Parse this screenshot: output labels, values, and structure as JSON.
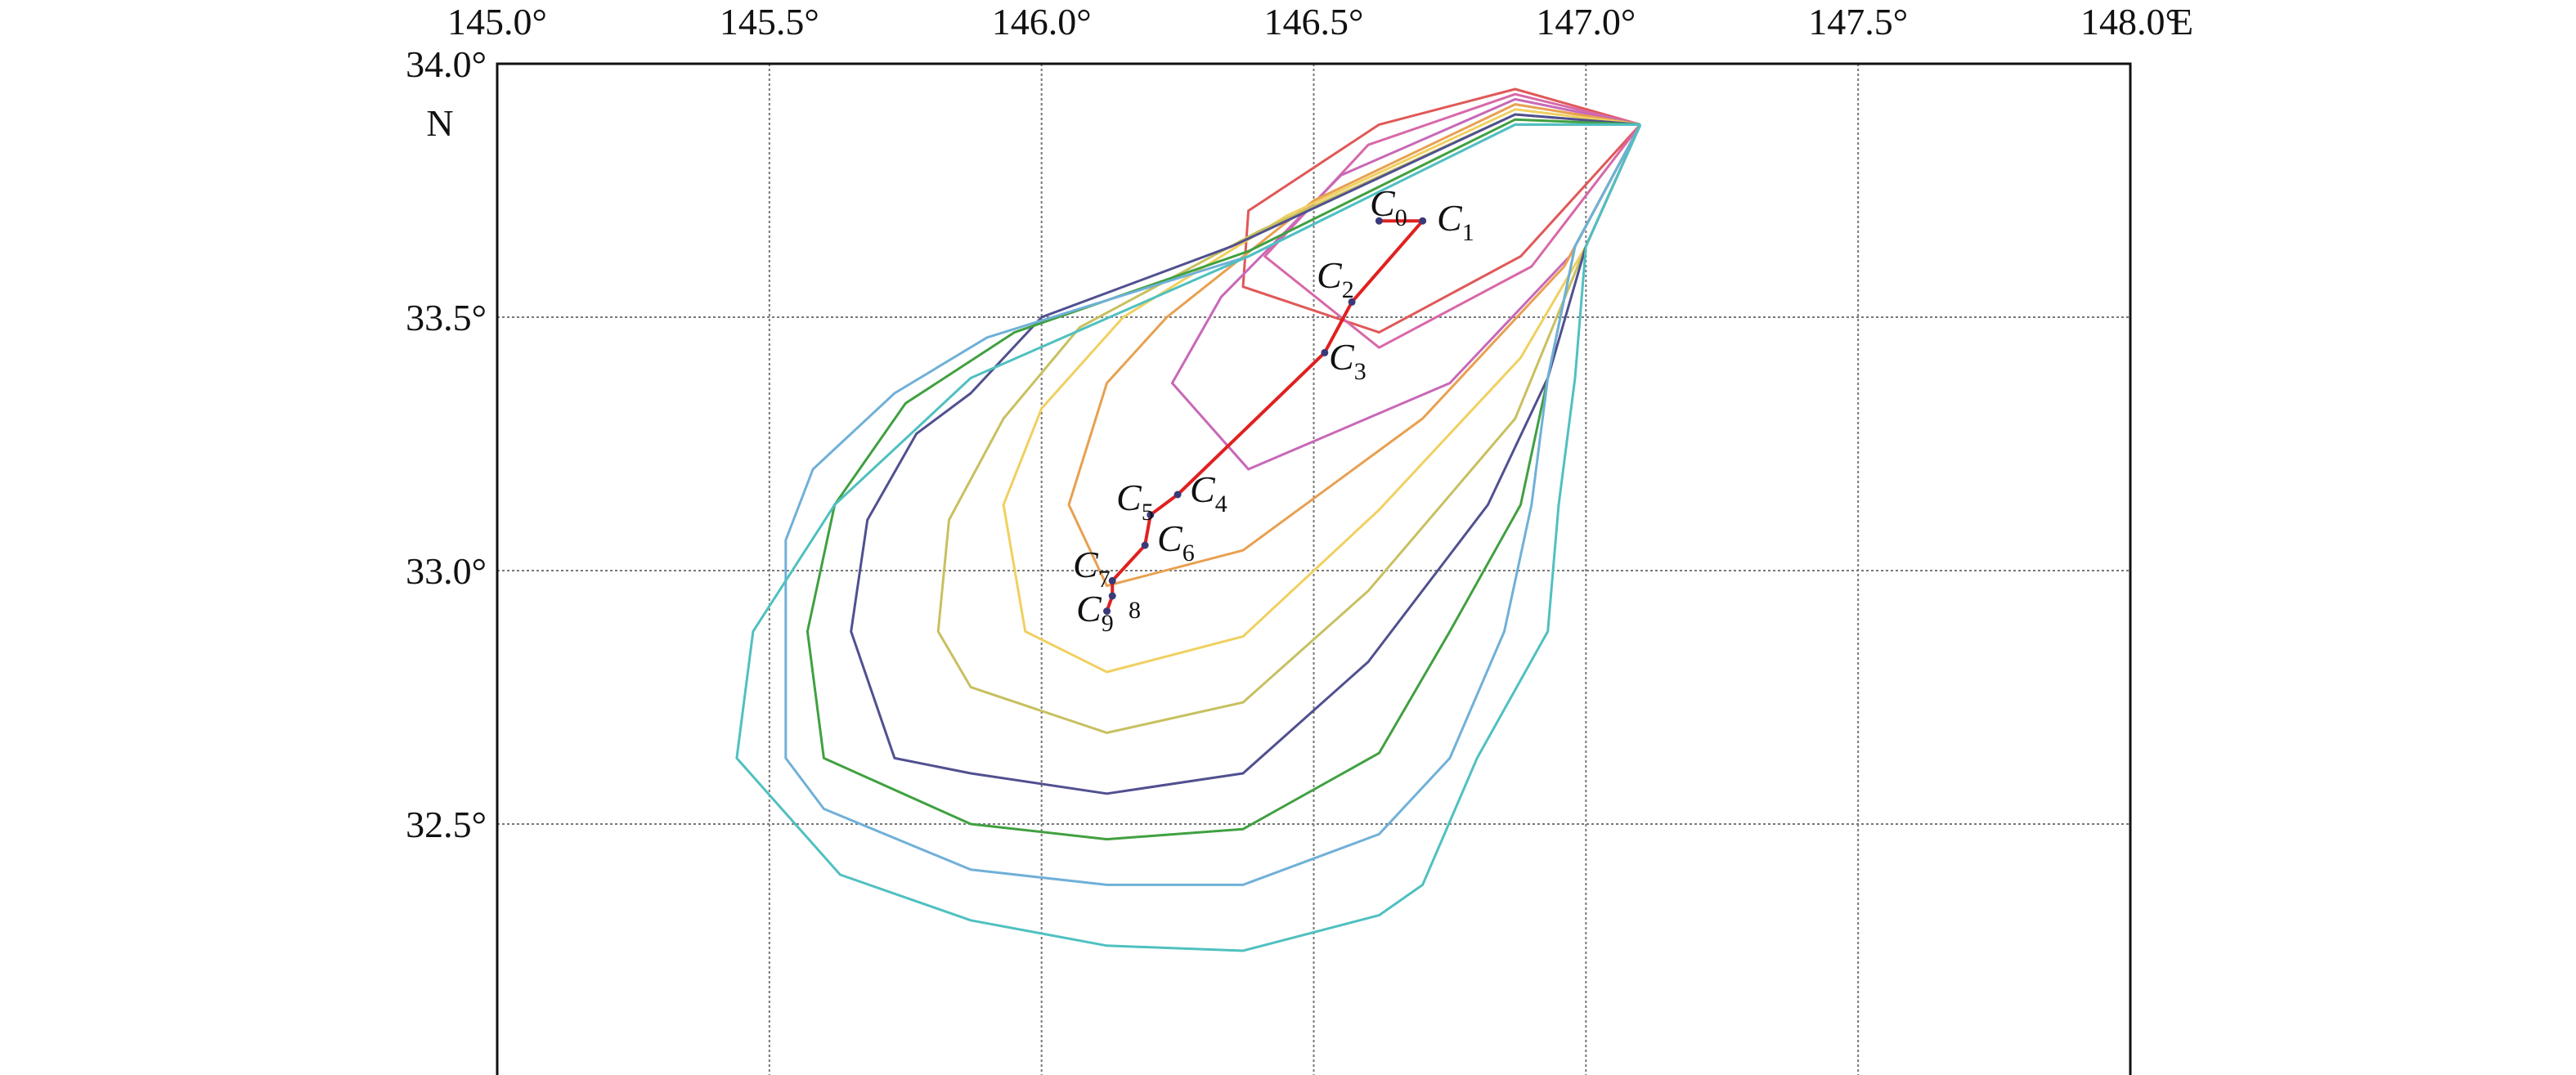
{
  "chart_data": {
    "type": "map",
    "x_axis": {
      "range": [
        145.0,
        148.0
      ],
      "ticks": [
        {
          "value": 145.0,
          "label": "145.0°"
        },
        {
          "value": 145.5,
          "label": "145.5°"
        },
        {
          "value": 146.0,
          "label": "146.0°"
        },
        {
          "value": 146.5,
          "label": "146.5°"
        },
        {
          "value": 147.0,
          "label": "147.0°"
        },
        {
          "value": 147.5,
          "label": "147.5°"
        },
        {
          "value": 148.0,
          "label": "148.0°"
        }
      ],
      "unit": "E"
    },
    "y_axis": {
      "range": [
        32.0,
        34.0
      ],
      "ticks": [
        {
          "value": 34.0,
          "label": "34.0°"
        },
        {
          "value": 33.5,
          "label": "33.5°"
        },
        {
          "value": 33.0,
          "label": "33.0°"
        },
        {
          "value": 32.5,
          "label": "32.5°"
        }
      ],
      "unit": "N"
    },
    "grid": true,
    "contours": [
      {
        "color": "#e05858",
        "points": [
          [
            147.1,
            33.88
          ],
          [
            146.87,
            33.95
          ],
          [
            146.62,
            33.88
          ],
          [
            146.38,
            33.71
          ],
          [
            146.37,
            33.56
          ],
          [
            146.62,
            33.47
          ],
          [
            146.88,
            33.62
          ],
          [
            147.1,
            33.88
          ]
        ]
      },
      {
        "color": "#d868a8",
        "points": [
          [
            147.1,
            33.88
          ],
          [
            146.87,
            33.94
          ],
          [
            146.6,
            33.84
          ],
          [
            146.41,
            33.62
          ],
          [
            146.62,
            33.44
          ],
          [
            146.9,
            33.6
          ],
          [
            147.1,
            33.88
          ]
        ]
      },
      {
        "color": "#c868b8",
        "points": [
          [
            147.1,
            33.88
          ],
          [
            146.87,
            33.93
          ],
          [
            146.55,
            33.78
          ],
          [
            146.33,
            33.54
          ],
          [
            146.24,
            33.37
          ],
          [
            146.38,
            33.2
          ],
          [
            146.75,
            33.37
          ],
          [
            146.97,
            33.62
          ],
          [
            147.1,
            33.88
          ]
        ]
      },
      {
        "color": "#e8a050",
        "points": [
          [
            147.1,
            33.88
          ],
          [
            146.87,
            33.92
          ],
          [
            146.5,
            33.73
          ],
          [
            146.23,
            33.5
          ],
          [
            146.12,
            33.37
          ],
          [
            146.05,
            33.13
          ],
          [
            146.12,
            32.97
          ],
          [
            146.37,
            33.04
          ],
          [
            146.7,
            33.3
          ],
          [
            146.96,
            33.6
          ],
          [
            147.1,
            33.88
          ]
        ]
      },
      {
        "color": "#f0d060",
        "points": [
          [
            147.1,
            33.88
          ],
          [
            146.87,
            33.91
          ],
          [
            146.45,
            33.7
          ],
          [
            146.15,
            33.5
          ],
          [
            146.0,
            33.32
          ],
          [
            145.93,
            33.13
          ],
          [
            145.97,
            32.88
          ],
          [
            146.12,
            32.8
          ],
          [
            146.37,
            32.87
          ],
          [
            146.62,
            33.12
          ],
          [
            146.88,
            33.42
          ],
          [
            147.0,
            33.64
          ],
          [
            147.1,
            33.88
          ]
        ]
      },
      {
        "color": "#c8c060",
        "points": [
          [
            147.1,
            33.88
          ],
          [
            146.87,
            33.9
          ],
          [
            146.4,
            33.67
          ],
          [
            146.07,
            33.48
          ],
          [
            145.93,
            33.3
          ],
          [
            145.83,
            33.1
          ],
          [
            145.81,
            32.88
          ],
          [
            145.87,
            32.77
          ],
          [
            146.12,
            32.68
          ],
          [
            146.37,
            32.74
          ],
          [
            146.6,
            32.96
          ],
          [
            146.87,
            33.3
          ],
          [
            147.0,
            33.64
          ],
          [
            147.1,
            33.88
          ]
        ]
      },
      {
        "color": "#505090",
        "points": [
          [
            147.1,
            33.88
          ],
          [
            146.87,
            33.9
          ],
          [
            146.35,
            33.64
          ],
          [
            146.0,
            33.5
          ],
          [
            145.87,
            33.35
          ],
          [
            145.77,
            33.27
          ],
          [
            145.68,
            33.1
          ],
          [
            145.65,
            32.88
          ],
          [
            145.73,
            32.63
          ],
          [
            145.87,
            32.6
          ],
          [
            146.12,
            32.56
          ],
          [
            146.37,
            32.6
          ],
          [
            146.6,
            32.82
          ],
          [
            146.82,
            33.13
          ],
          [
            146.93,
            33.38
          ],
          [
            147.0,
            33.64
          ],
          [
            147.1,
            33.88
          ]
        ]
      },
      {
        "color": "#40a040",
        "points": [
          [
            147.1,
            33.88
          ],
          [
            146.87,
            33.89
          ],
          [
            146.38,
            33.63
          ],
          [
            145.95,
            33.47
          ],
          [
            145.75,
            33.33
          ],
          [
            145.62,
            33.13
          ],
          [
            145.57,
            32.88
          ],
          [
            145.6,
            32.63
          ],
          [
            145.87,
            32.5
          ],
          [
            146.12,
            32.47
          ],
          [
            146.37,
            32.49
          ],
          [
            146.62,
            32.64
          ],
          [
            146.75,
            32.88
          ],
          [
            146.88,
            33.13
          ],
          [
            146.93,
            33.38
          ],
          [
            146.98,
            33.64
          ],
          [
            147.1,
            33.88
          ]
        ]
      },
      {
        "color": "#70b0d8",
        "points": [
          [
            147.1,
            33.88
          ],
          [
            146.87,
            33.88
          ],
          [
            146.38,
            33.62
          ],
          [
            145.9,
            33.46
          ],
          [
            145.73,
            33.35
          ],
          [
            145.58,
            33.2
          ],
          [
            145.53,
            33.06
          ],
          [
            145.53,
            32.87
          ],
          [
            145.53,
            32.63
          ],
          [
            145.6,
            32.53
          ],
          [
            145.87,
            32.41
          ],
          [
            146.12,
            32.38
          ],
          [
            146.37,
            32.38
          ],
          [
            146.62,
            32.48
          ],
          [
            146.75,
            32.63
          ],
          [
            146.85,
            32.88
          ],
          [
            146.9,
            33.13
          ],
          [
            146.93,
            33.38
          ],
          [
            146.98,
            33.64
          ],
          [
            147.1,
            33.88
          ]
        ]
      },
      {
        "color": "#50c0c0",
        "points": [
          [
            147.1,
            33.88
          ],
          [
            146.87,
            33.88
          ],
          [
            146.38,
            33.62
          ],
          [
            145.87,
            33.38
          ],
          [
            145.62,
            33.13
          ],
          [
            145.47,
            32.88
          ],
          [
            145.44,
            32.63
          ],
          [
            145.63,
            32.4
          ],
          [
            145.87,
            32.31
          ],
          [
            146.12,
            32.26
          ],
          [
            146.37,
            32.25
          ],
          [
            146.62,
            32.32
          ],
          [
            146.7,
            32.38
          ],
          [
            146.8,
            32.63
          ],
          [
            146.93,
            32.88
          ],
          [
            146.95,
            33.13
          ],
          [
            146.98,
            33.38
          ],
          [
            147.0,
            33.64
          ],
          [
            147.1,
            33.88
          ]
        ]
      }
    ],
    "track": {
      "color": "#e02020",
      "points": [
        {
          "id": "C",
          "sub": "0",
          "lon": 146.62,
          "lat": 33.69
        },
        {
          "id": "C",
          "sub": "1",
          "lon": 146.7,
          "lat": 33.69
        },
        {
          "id": "C",
          "sub": "2",
          "lon": 146.57,
          "lat": 33.53
        },
        {
          "id": "C",
          "sub": "3",
          "lon": 146.52,
          "lat": 33.43
        },
        {
          "id": "C",
          "sub": "4",
          "lon": 146.25,
          "lat": 33.15
        },
        {
          "id": "C",
          "sub": "5",
          "lon": 146.2,
          "lat": 33.11
        },
        {
          "id": "C",
          "sub": "6",
          "lon": 146.19,
          "lat": 33.05
        },
        {
          "id": "C",
          "sub": "7",
          "lon": 146.13,
          "lat": 32.98
        },
        {
          "id": "C",
          "sub": "8",
          "lon": 146.13,
          "lat": 32.95
        },
        {
          "id": "C",
          "sub": "9",
          "lon": 146.12,
          "lat": 32.92
        }
      ]
    },
    "labels": [
      {
        "main": "C",
        "sub": "0"
      },
      {
        "main": "C",
        "sub": "1"
      },
      {
        "main": "C",
        "sub": "2"
      },
      {
        "main": "C",
        "sub": "3"
      },
      {
        "main": "C",
        "sub": "4"
      },
      {
        "main": "C",
        "sub": "5"
      },
      {
        "main": "C",
        "sub": "6"
      },
      {
        "main": "C",
        "sub": "7"
      },
      {
        "main": "C",
        "sub": "9"
      }
    ],
    "stray_label": "8"
  }
}
